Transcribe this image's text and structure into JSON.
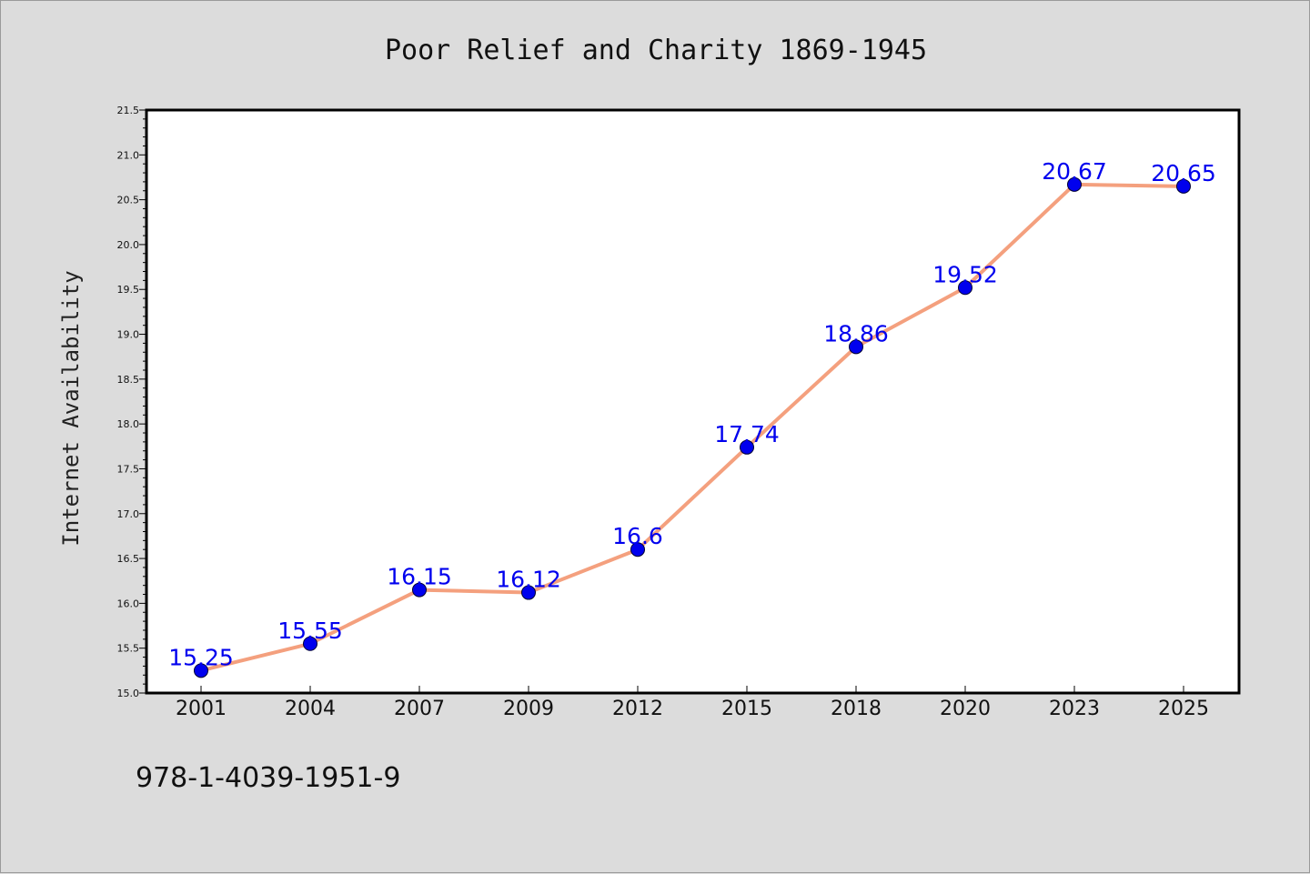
{
  "chart_data": {
    "type": "line",
    "title": "Poor Relief and Charity 1869-1945",
    "xlabel": "",
    "ylabel": "Internet Availability",
    "categories": [
      "2001",
      "2004",
      "2007",
      "2009",
      "2012",
      "2015",
      "2018",
      "2020",
      "2023",
      "2025"
    ],
    "series": [
      {
        "values": [
          15.25,
          15.55,
          16.15,
          16.12,
          16.6,
          17.74,
          18.86,
          19.52,
          20.67,
          20.65
        ],
        "data_labels": [
          "15.25",
          "15.55",
          "16.15",
          "16.12",
          "16.6",
          "17.74",
          "18.86",
          "19.52",
          "20.67",
          "20.65"
        ]
      }
    ],
    "ylim": [
      15.0,
      21.5
    ],
    "y_major_ticks": [
      "15.0",
      "15.5",
      "16.0",
      "16.5",
      "17.0",
      "17.5",
      "18.0",
      "18.5",
      "19.0",
      "19.5",
      "20.0",
      "20.5",
      "21.0",
      "21.5"
    ],
    "grid": false,
    "legend": "none",
    "colors": {
      "line": "#f4a07e",
      "marker": "#0000ee",
      "data_label": "#0000ee",
      "plot_background": "#ffffff",
      "figure_background": "#dcdcdc"
    }
  },
  "footnote": "978-1-4039-1951-9"
}
